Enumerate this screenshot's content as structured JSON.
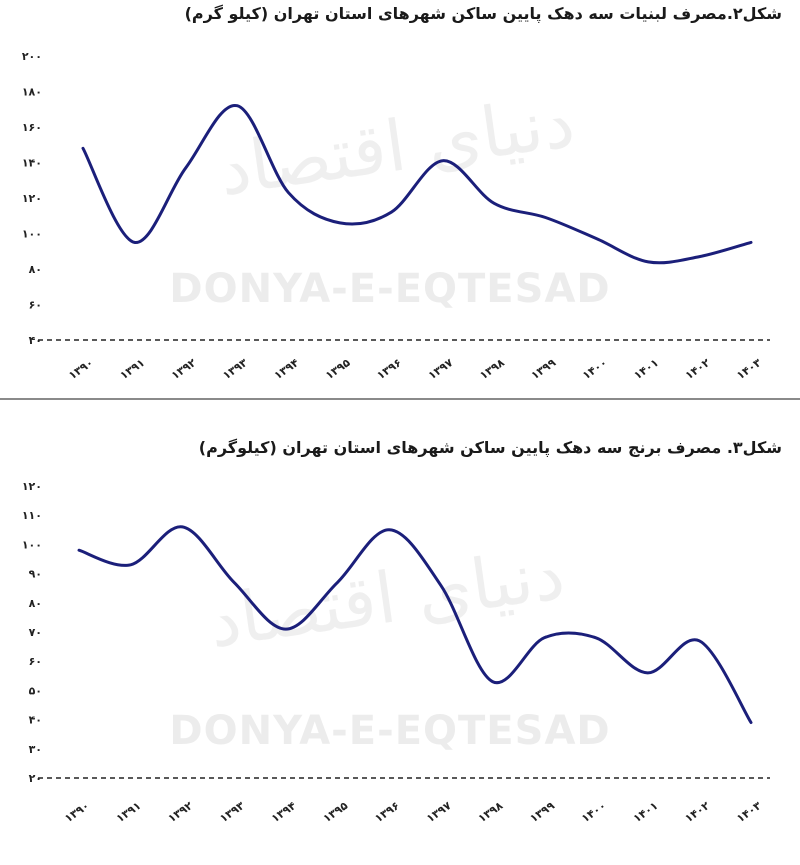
{
  "chart_data": [
    {
      "type": "line",
      "title": "شکل۲.مصرف لبنیات سه دهک پایین ساکن شهرهای استان تهران (کیلو گرم)",
      "categories": [
        "۱۳۹۰",
        "۱۳۹۱",
        "۱۳۹۲",
        "۱۳۹۳",
        "۱۳۹۴",
        "۱۳۹۵",
        "۱۳۹۶",
        "۱۳۹۷",
        "۱۳۹۸",
        "۱۳۹۹",
        "۱۴۰۰",
        "۱۴۰۱",
        "۱۴۰۲",
        "۱۴۰۳"
      ],
      "values": [
        148,
        95,
        137,
        172,
        123,
        106,
        112,
        141,
        117,
        109,
        97,
        84,
        87,
        95
      ],
      "yticks": [
        "۴۰",
        "۶۰",
        "۸۰",
        "۱۰۰",
        "۱۲۰",
        "۱۴۰",
        "۱۶۰",
        "۱۸۰",
        "۲۰۰"
      ],
      "ylim": [
        40,
        200
      ],
      "grid": false,
      "baseline": "dashed",
      "line_color": "#1b1f7a"
    },
    {
      "type": "line",
      "title": "شکل۳. مصرف برنج سه دهک پایین ساکن شهرهای استان تهران (کیلوگرم)",
      "categories": [
        "۱۳۹۰",
        "۱۳۹۱",
        "۱۳۹۲",
        "۱۳۹۳",
        "۱۳۹۴",
        "۱۳۹۵",
        "۱۳۹۶",
        "۱۳۹۷",
        "۱۳۹۸",
        "۱۳۹۹",
        "۱۴۰۰",
        "۱۴۰۱",
        "۱۴۰۲",
        "۱۴۰۳"
      ],
      "values": [
        98,
        93,
        106,
        87,
        71,
        87,
        105,
        86,
        53,
        68,
        68,
        56,
        67,
        39
      ],
      "yticks": [
        "۲۰",
        "۳۰",
        "۴۰",
        "۵۰",
        "۶۰",
        "۷۰",
        "۸۰",
        "۹۰",
        "۱۰۰",
        "۱۱۰",
        "۱۲۰"
      ],
      "ylim": [
        20,
        120
      ],
      "grid": false,
      "baseline": "dashed",
      "line_color": "#1b1f7a"
    }
  ],
  "watermark": {
    "text": "DONYA-E-EQTESAD",
    "logo": "دنیای اقتصاد"
  }
}
